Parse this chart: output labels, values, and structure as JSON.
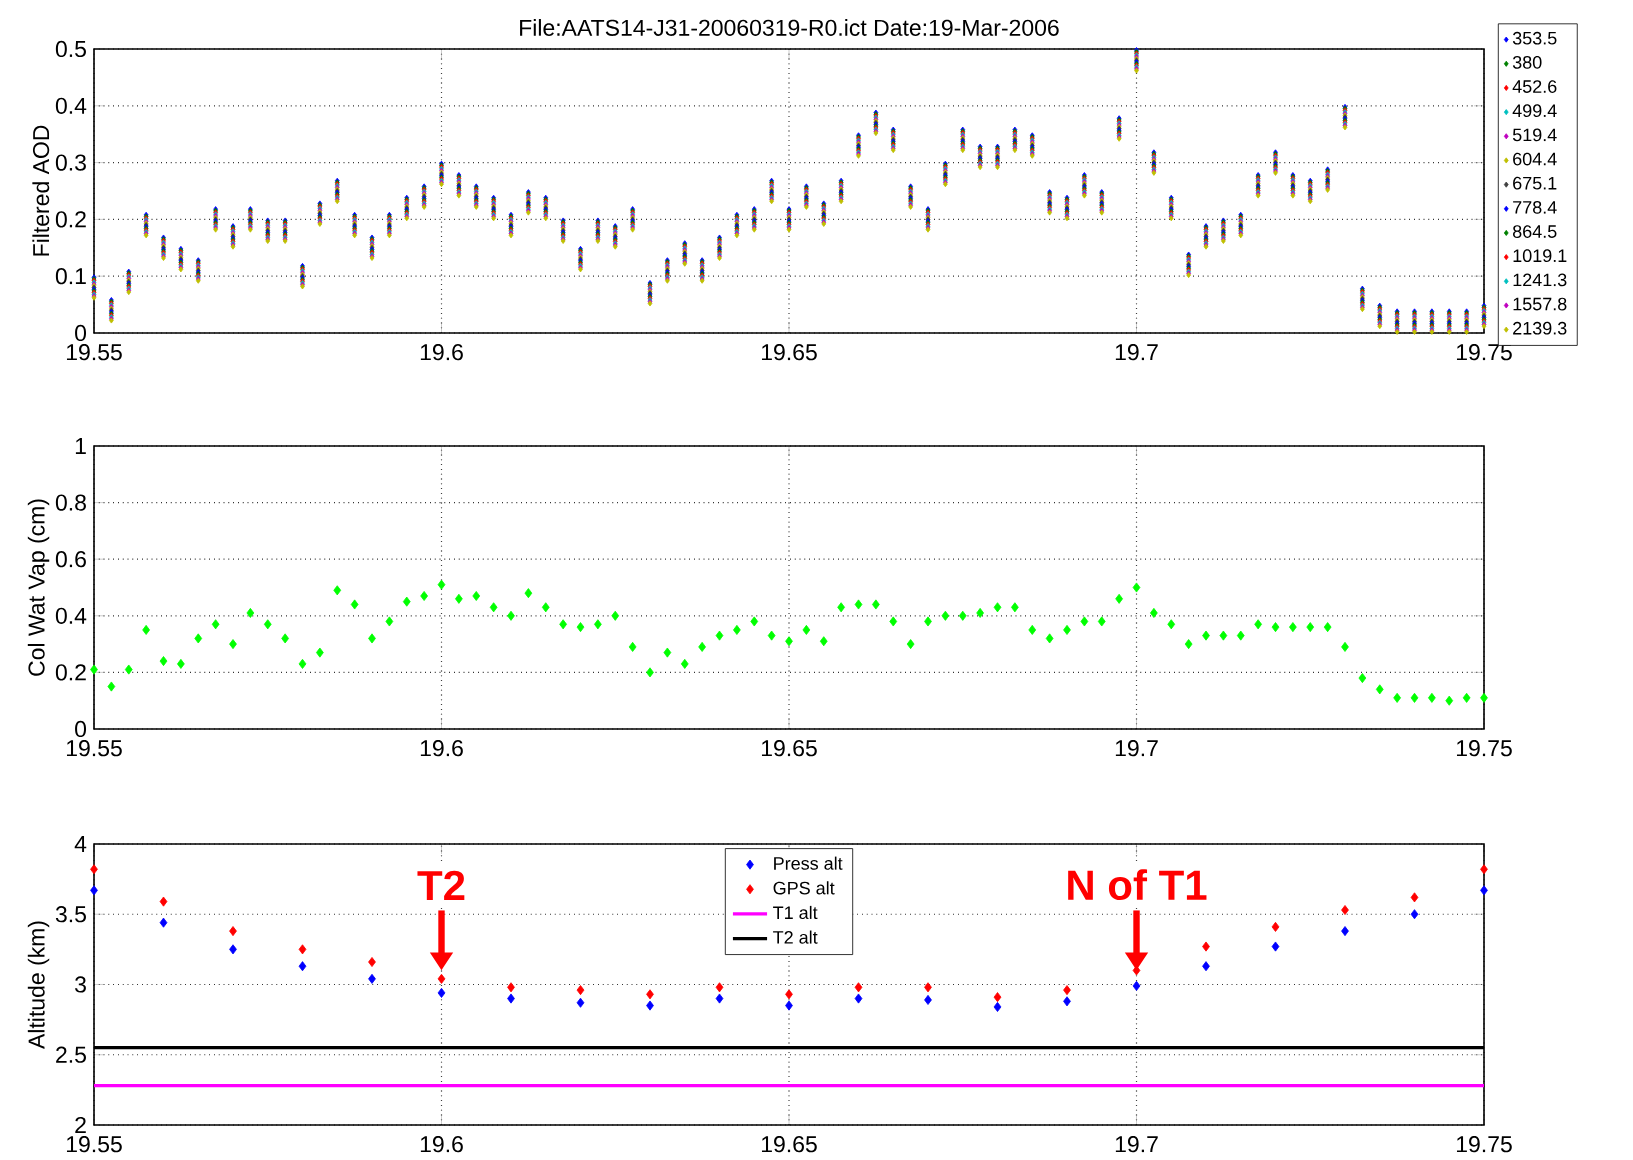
{
  "chart_data": [
    {
      "type": "scatter",
      "title": "File:AATS14-J31-20060319-R0.ict    Date:19-Mar-2006",
      "ylabel": "Filtered AOD",
      "xlim": [
        19.55,
        19.75
      ],
      "ylim": [
        0,
        0.5
      ],
      "xticks": [
        19.55,
        19.6,
        19.65,
        19.7,
        19.75
      ],
      "yticks": [
        0,
        0.1,
        0.2,
        0.3,
        0.4,
        0.5
      ],
      "grid": true,
      "legend": "right",
      "marker": "diamond",
      "x": [
        19.55,
        19.5525,
        19.555,
        19.5575,
        19.56,
        19.5625,
        19.565,
        19.5675,
        19.57,
        19.5725,
        19.575,
        19.5775,
        19.58,
        19.5825,
        19.585,
        19.5875,
        19.59,
        19.5925,
        19.595,
        19.5975,
        19.6,
        19.6025,
        19.605,
        19.6075,
        19.61,
        19.6125,
        19.615,
        19.6175,
        19.62,
        19.6225,
        19.625,
        19.6275,
        19.63,
        19.6325,
        19.635,
        19.6375,
        19.64,
        19.6425,
        19.645,
        19.6475,
        19.65,
        19.6525,
        19.655,
        19.6575,
        19.66,
        19.6625,
        19.665,
        19.6675,
        19.67,
        19.6725,
        19.675,
        19.6775,
        19.68,
        19.6825,
        19.685,
        19.6875,
        19.69,
        19.6925,
        19.695,
        19.6975,
        19.7,
        19.7025,
        19.705,
        19.7075,
        19.71,
        19.7125,
        19.715,
        19.7175,
        19.72,
        19.7225,
        19.725,
        19.7275,
        19.73,
        19.7325,
        19.735,
        19.7375,
        19.74,
        19.7425,
        19.745,
        19.7475,
        19.75
      ],
      "series": [
        {
          "name": "353.5",
          "color": "#0000ff",
          "values": [
            0.098,
            0.058,
            0.108,
            0.208,
            0.168,
            0.148,
            0.128,
            0.218,
            0.188,
            0.218,
            0.198,
            0.198,
            0.118,
            0.228,
            0.268,
            0.208,
            0.168,
            0.208,
            0.238,
            0.258,
            0.298,
            0.278,
            0.258,
            0.238,
            0.208,
            0.248,
            0.238,
            0.198,
            0.148,
            0.198,
            0.188,
            0.218,
            0.088,
            0.128,
            0.158,
            0.128,
            0.168,
            0.208,
            0.218,
            0.268,
            0.218,
            0.258,
            0.228,
            0.268,
            0.348,
            0.388,
            0.358,
            0.258,
            0.218,
            0.298,
            0.358,
            0.328,
            0.328,
            0.358,
            0.348,
            0.248,
            0.238,
            0.278,
            0.248,
            0.378,
            0.498,
            0.318,
            0.238,
            0.138,
            0.188,
            0.198,
            0.208,
            0.278,
            0.318,
            0.278,
            0.268,
            0.288,
            0.398,
            0.078,
            0.048,
            0.038,
            0.038,
            0.038,
            0.038,
            0.038,
            0.048
          ]
        },
        {
          "name": "380",
          "color": "#008000",
          "values": [
            0.095,
            0.055,
            0.105,
            0.205,
            0.165,
            0.145,
            0.125,
            0.215,
            0.185,
            0.215,
            0.195,
            0.195,
            0.115,
            0.225,
            0.265,
            0.205,
            0.165,
            0.205,
            0.235,
            0.255,
            0.295,
            0.275,
            0.255,
            0.235,
            0.205,
            0.245,
            0.235,
            0.195,
            0.145,
            0.195,
            0.185,
            0.215,
            0.085,
            0.125,
            0.155,
            0.125,
            0.165,
            0.205,
            0.215,
            0.265,
            0.215,
            0.255,
            0.225,
            0.265,
            0.345,
            0.385,
            0.355,
            0.255,
            0.215,
            0.295,
            0.355,
            0.325,
            0.325,
            0.355,
            0.345,
            0.245,
            0.235,
            0.275,
            0.245,
            0.375,
            0.495,
            0.315,
            0.235,
            0.135,
            0.185,
            0.195,
            0.205,
            0.275,
            0.315,
            0.275,
            0.265,
            0.285,
            0.395,
            0.075,
            0.045,
            0.035,
            0.035,
            0.035,
            0.035,
            0.035,
            0.045
          ]
        },
        {
          "name": "452.6",
          "color": "#ff0000",
          "values": [
            0.092,
            0.052,
            0.102,
            0.202,
            0.162,
            0.142,
            0.122,
            0.212,
            0.182,
            0.212,
            0.192,
            0.192,
            0.112,
            0.222,
            0.262,
            0.202,
            0.162,
            0.202,
            0.232,
            0.252,
            0.292,
            0.272,
            0.252,
            0.232,
            0.202,
            0.242,
            0.232,
            0.192,
            0.142,
            0.192,
            0.182,
            0.212,
            0.082,
            0.122,
            0.152,
            0.122,
            0.162,
            0.202,
            0.212,
            0.262,
            0.212,
            0.252,
            0.222,
            0.262,
            0.342,
            0.382,
            0.352,
            0.252,
            0.212,
            0.292,
            0.352,
            0.322,
            0.322,
            0.352,
            0.342,
            0.242,
            0.232,
            0.272,
            0.242,
            0.372,
            0.492,
            0.312,
            0.232,
            0.132,
            0.182,
            0.192,
            0.202,
            0.272,
            0.312,
            0.272,
            0.262,
            0.282,
            0.392,
            0.072,
            0.042,
            0.032,
            0.032,
            0.032,
            0.032,
            0.032,
            0.042
          ]
        },
        {
          "name": "499.4",
          "color": "#00bfbf",
          "values": [
            0.089,
            0.049,
            0.099,
            0.199,
            0.159,
            0.139,
            0.119,
            0.209,
            0.179,
            0.209,
            0.189,
            0.189,
            0.109,
            0.219,
            0.259,
            0.199,
            0.159,
            0.199,
            0.229,
            0.249,
            0.289,
            0.269,
            0.249,
            0.229,
            0.199,
            0.239,
            0.229,
            0.189,
            0.139,
            0.189,
            0.179,
            0.209,
            0.079,
            0.119,
            0.149,
            0.119,
            0.159,
            0.199,
            0.209,
            0.259,
            0.209,
            0.249,
            0.219,
            0.259,
            0.339,
            0.379,
            0.349,
            0.249,
            0.209,
            0.289,
            0.349,
            0.319,
            0.319,
            0.349,
            0.339,
            0.239,
            0.229,
            0.269,
            0.239,
            0.369,
            0.489,
            0.309,
            0.229,
            0.129,
            0.179,
            0.189,
            0.199,
            0.269,
            0.309,
            0.269,
            0.259,
            0.279,
            0.389,
            0.069,
            0.039,
            0.029,
            0.029,
            0.029,
            0.029,
            0.029,
            0.039
          ]
        },
        {
          "name": "519.4",
          "color": "#bf00bf",
          "values": [
            0.086,
            0.046,
            0.096,
            0.196,
            0.156,
            0.136,
            0.116,
            0.206,
            0.176,
            0.206,
            0.186,
            0.186,
            0.106,
            0.216,
            0.256,
            0.196,
            0.156,
            0.196,
            0.226,
            0.246,
            0.286,
            0.266,
            0.246,
            0.226,
            0.196,
            0.236,
            0.226,
            0.186,
            0.136,
            0.186,
            0.176,
            0.206,
            0.076,
            0.116,
            0.146,
            0.116,
            0.156,
            0.196,
            0.206,
            0.256,
            0.206,
            0.246,
            0.216,
            0.256,
            0.336,
            0.376,
            0.346,
            0.246,
            0.206,
            0.286,
            0.346,
            0.316,
            0.316,
            0.346,
            0.336,
            0.236,
            0.226,
            0.266,
            0.236,
            0.366,
            0.486,
            0.306,
            0.226,
            0.126,
            0.176,
            0.186,
            0.196,
            0.266,
            0.306,
            0.266,
            0.256,
            0.276,
            0.386,
            0.066,
            0.036,
            0.026,
            0.026,
            0.026,
            0.026,
            0.026,
            0.036
          ]
        },
        {
          "name": "604.4",
          "color": "#bfbf00",
          "values": [
            0.083,
            0.043,
            0.093,
            0.193,
            0.153,
            0.133,
            0.113,
            0.203,
            0.173,
            0.203,
            0.183,
            0.183,
            0.103,
            0.213,
            0.253,
            0.193,
            0.153,
            0.193,
            0.223,
            0.243,
            0.283,
            0.263,
            0.243,
            0.223,
            0.193,
            0.233,
            0.223,
            0.183,
            0.133,
            0.183,
            0.173,
            0.203,
            0.073,
            0.113,
            0.143,
            0.113,
            0.153,
            0.193,
            0.203,
            0.253,
            0.203,
            0.243,
            0.213,
            0.253,
            0.333,
            0.373,
            0.343,
            0.243,
            0.203,
            0.283,
            0.343,
            0.313,
            0.313,
            0.343,
            0.333,
            0.233,
            0.223,
            0.263,
            0.233,
            0.363,
            0.483,
            0.303,
            0.223,
            0.123,
            0.173,
            0.183,
            0.193,
            0.263,
            0.303,
            0.263,
            0.253,
            0.273,
            0.383,
            0.063,
            0.033,
            0.023,
            0.023,
            0.023,
            0.023,
            0.023,
            0.033
          ]
        },
        {
          "name": "675.1",
          "color": "#404040",
          "values": [
            0.08,
            0.04,
            0.09,
            0.19,
            0.15,
            0.13,
            0.11,
            0.2,
            0.17,
            0.2,
            0.18,
            0.18,
            0.1,
            0.21,
            0.25,
            0.19,
            0.15,
            0.19,
            0.22,
            0.24,
            0.28,
            0.26,
            0.24,
            0.22,
            0.19,
            0.23,
            0.22,
            0.18,
            0.13,
            0.18,
            0.17,
            0.2,
            0.07,
            0.11,
            0.14,
            0.11,
            0.15,
            0.19,
            0.2,
            0.25,
            0.2,
            0.24,
            0.21,
            0.25,
            0.33,
            0.37,
            0.34,
            0.24,
            0.2,
            0.28,
            0.34,
            0.31,
            0.31,
            0.34,
            0.33,
            0.23,
            0.22,
            0.26,
            0.23,
            0.36,
            0.48,
            0.3,
            0.22,
            0.12,
            0.17,
            0.18,
            0.19,
            0.26,
            0.3,
            0.26,
            0.25,
            0.27,
            0.38,
            0.06,
            0.03,
            0.02,
            0.02,
            0.02,
            0.02,
            0.02,
            0.03
          ]
        },
        {
          "name": "778.4",
          "color": "#0000ff",
          "values": [
            0.077,
            0.037,
            0.087,
            0.187,
            0.147,
            0.127,
            0.107,
            0.197,
            0.167,
            0.197,
            0.177,
            0.177,
            0.097,
            0.207,
            0.247,
            0.187,
            0.147,
            0.187,
            0.217,
            0.237,
            0.277,
            0.257,
            0.237,
            0.217,
            0.187,
            0.227,
            0.217,
            0.177,
            0.127,
            0.177,
            0.167,
            0.197,
            0.067,
            0.107,
            0.137,
            0.107,
            0.147,
            0.187,
            0.197,
            0.247,
            0.197,
            0.237,
            0.207,
            0.247,
            0.327,
            0.367,
            0.337,
            0.237,
            0.197,
            0.277,
            0.337,
            0.307,
            0.307,
            0.337,
            0.327,
            0.227,
            0.217,
            0.257,
            0.227,
            0.357,
            0.477,
            0.297,
            0.217,
            0.117,
            0.167,
            0.177,
            0.187,
            0.257,
            0.297,
            0.257,
            0.247,
            0.267,
            0.377,
            0.057,
            0.027,
            0.017,
            0.017,
            0.017,
            0.017,
            0.017,
            0.027
          ]
        },
        {
          "name": "864.5",
          "color": "#008000",
          "values": [
            0.074,
            0.034,
            0.084,
            0.184,
            0.144,
            0.124,
            0.104,
            0.194,
            0.164,
            0.194,
            0.174,
            0.174,
            0.094,
            0.204,
            0.244,
            0.184,
            0.144,
            0.184,
            0.214,
            0.234,
            0.274,
            0.254,
            0.234,
            0.214,
            0.184,
            0.224,
            0.214,
            0.174,
            0.124,
            0.174,
            0.164,
            0.194,
            0.064,
            0.104,
            0.134,
            0.104,
            0.144,
            0.184,
            0.194,
            0.244,
            0.194,
            0.234,
            0.204,
            0.244,
            0.324,
            0.364,
            0.334,
            0.234,
            0.194,
            0.274,
            0.334,
            0.304,
            0.304,
            0.334,
            0.324,
            0.224,
            0.214,
            0.254,
            0.224,
            0.354,
            0.474,
            0.294,
            0.214,
            0.114,
            0.164,
            0.174,
            0.184,
            0.254,
            0.294,
            0.254,
            0.244,
            0.264,
            0.374,
            0.054,
            0.024,
            0.014,
            0.014,
            0.014,
            0.014,
            0.014,
            0.024
          ]
        },
        {
          "name": "1019.1",
          "color": "#ff0000",
          "values": [
            0.071,
            0.031,
            0.081,
            0.181,
            0.141,
            0.121,
            0.101,
            0.191,
            0.161,
            0.191,
            0.171,
            0.171,
            0.091,
            0.201,
            0.241,
            0.181,
            0.141,
            0.181,
            0.211,
            0.231,
            0.271,
            0.251,
            0.231,
            0.211,
            0.181,
            0.221,
            0.211,
            0.171,
            0.121,
            0.171,
            0.161,
            0.191,
            0.061,
            0.101,
            0.131,
            0.101,
            0.141,
            0.181,
            0.191,
            0.241,
            0.191,
            0.231,
            0.201,
            0.241,
            0.321,
            0.361,
            0.331,
            0.231,
            0.191,
            0.271,
            0.331,
            0.301,
            0.301,
            0.331,
            0.321,
            0.221,
            0.211,
            0.251,
            0.221,
            0.351,
            0.471,
            0.291,
            0.211,
            0.111,
            0.161,
            0.171,
            0.181,
            0.251,
            0.291,
            0.251,
            0.241,
            0.261,
            0.371,
            0.051,
            0.021,
            0.011,
            0.011,
            0.011,
            0.011,
            0.011,
            0.021
          ]
        },
        {
          "name": "1241.3",
          "color": "#00bfbf",
          "values": [
            0.068,
            0.028,
            0.078,
            0.178,
            0.138,
            0.118,
            0.098,
            0.188,
            0.158,
            0.188,
            0.168,
            0.168,
            0.088,
            0.198,
            0.238,
            0.178,
            0.138,
            0.178,
            0.208,
            0.228,
            0.268,
            0.248,
            0.228,
            0.208,
            0.178,
            0.218,
            0.208,
            0.168,
            0.118,
            0.168,
            0.158,
            0.188,
            0.058,
            0.098,
            0.128,
            0.098,
            0.138,
            0.178,
            0.188,
            0.238,
            0.188,
            0.228,
            0.198,
            0.238,
            0.318,
            0.358,
            0.328,
            0.228,
            0.188,
            0.268,
            0.328,
            0.298,
            0.298,
            0.328,
            0.318,
            0.218,
            0.208,
            0.248,
            0.218,
            0.348,
            0.468,
            0.288,
            0.208,
            0.108,
            0.158,
            0.168,
            0.178,
            0.248,
            0.288,
            0.248,
            0.238,
            0.258,
            0.368,
            0.048,
            0.018,
            0.008,
            0.008,
            0.008,
            0.008,
            0.008,
            0.018
          ]
        },
        {
          "name": "1557.8",
          "color": "#bf00bf",
          "values": [
            0.065,
            0.025,
            0.075,
            0.175,
            0.135,
            0.115,
            0.095,
            0.185,
            0.155,
            0.185,
            0.165,
            0.165,
            0.085,
            0.195,
            0.235,
            0.175,
            0.135,
            0.175,
            0.205,
            0.225,
            0.265,
            0.245,
            0.225,
            0.205,
            0.175,
            0.215,
            0.205,
            0.165,
            0.115,
            0.165,
            0.155,
            0.185,
            0.055,
            0.095,
            0.125,
            0.095,
            0.135,
            0.175,
            0.185,
            0.235,
            0.185,
            0.225,
            0.195,
            0.235,
            0.315,
            0.355,
            0.325,
            0.225,
            0.185,
            0.265,
            0.325,
            0.295,
            0.295,
            0.325,
            0.315,
            0.215,
            0.205,
            0.245,
            0.215,
            0.345,
            0.465,
            0.285,
            0.205,
            0.105,
            0.155,
            0.165,
            0.175,
            0.245,
            0.285,
            0.245,
            0.235,
            0.255,
            0.365,
            0.045,
            0.015,
            0.005,
            0.005,
            0.005,
            0.005,
            0.005,
            0.015
          ]
        },
        {
          "name": "2139.3",
          "color": "#bfbf00",
          "values": [
            0.062,
            0.022,
            0.072,
            0.172,
            0.132,
            0.112,
            0.092,
            0.182,
            0.152,
            0.182,
            0.162,
            0.162,
            0.082,
            0.192,
            0.232,
            0.172,
            0.132,
            0.172,
            0.202,
            0.222,
            0.262,
            0.242,
            0.222,
            0.202,
            0.172,
            0.212,
            0.202,
            0.162,
            0.112,
            0.162,
            0.152,
            0.182,
            0.052,
            0.092,
            0.122,
            0.092,
            0.132,
            0.172,
            0.182,
            0.232,
            0.182,
            0.222,
            0.192,
            0.232,
            0.312,
            0.352,
            0.322,
            0.222,
            0.182,
            0.262,
            0.322,
            0.292,
            0.292,
            0.322,
            0.312,
            0.212,
            0.202,
            0.242,
            0.212,
            0.342,
            0.462,
            0.282,
            0.202,
            0.102,
            0.152,
            0.162,
            0.172,
            0.242,
            0.282,
            0.242,
            0.232,
            0.252,
            0.362,
            0.042,
            0.012,
            0.002,
            0.002,
            0.002,
            0.002,
            0.002,
            0.012
          ]
        }
      ]
    },
    {
      "type": "scatter",
      "ylabel": "Col Wat Vap (cm)",
      "xlim": [
        19.55,
        19.75
      ],
      "ylim": [
        0,
        1
      ],
      "xticks": [
        19.55,
        19.6,
        19.65,
        19.7,
        19.75
      ],
      "yticks": [
        0,
        0.2,
        0.4,
        0.6,
        0.8,
        1
      ],
      "grid": true,
      "marker": "diamond",
      "color": "#00ff00",
      "x": [
        19.55,
        19.5525,
        19.555,
        19.5575,
        19.56,
        19.5625,
        19.565,
        19.5675,
        19.57,
        19.5725,
        19.575,
        19.5775,
        19.58,
        19.5825,
        19.585,
        19.5875,
        19.59,
        19.5925,
        19.595,
        19.5975,
        19.6,
        19.6025,
        19.605,
        19.6075,
        19.61,
        19.6125,
        19.615,
        19.6175,
        19.62,
        19.6225,
        19.625,
        19.6275,
        19.63,
        19.6325,
        19.635,
        19.6375,
        19.64,
        19.6425,
        19.645,
        19.6475,
        19.65,
        19.6525,
        19.655,
        19.6575,
        19.66,
        19.6625,
        19.665,
        19.6675,
        19.67,
        19.6725,
        19.675,
        19.6775,
        19.68,
        19.6825,
        19.685,
        19.6875,
        19.69,
        19.6925,
        19.695,
        19.6975,
        19.7,
        19.7025,
        19.705,
        19.7075,
        19.71,
        19.7125,
        19.715,
        19.7175,
        19.72,
        19.7225,
        19.725,
        19.7275,
        19.73,
        19.7325,
        19.735,
        19.7375,
        19.74,
        19.7425,
        19.745,
        19.7475,
        19.75
      ],
      "values": [
        0.21,
        0.15,
        0.21,
        0.35,
        0.24,
        0.23,
        0.32,
        0.37,
        0.3,
        0.41,
        0.37,
        0.32,
        0.23,
        0.27,
        0.49,
        0.44,
        0.32,
        0.38,
        0.45,
        0.47,
        0.51,
        0.46,
        0.47,
        0.43,
        0.4,
        0.48,
        0.43,
        0.37,
        0.36,
        0.37,
        0.4,
        0.29,
        0.2,
        0.27,
        0.23,
        0.29,
        0.33,
        0.35,
        0.38,
        0.33,
        0.31,
        0.35,
        0.31,
        0.43,
        0.44,
        0.44,
        0.38,
        0.3,
        0.38,
        0.4,
        0.4,
        0.41,
        0.43,
        0.43,
        0.35,
        0.32,
        0.35,
        0.38,
        0.38,
        0.46,
        0.5,
        0.41,
        0.37,
        0.3,
        0.33,
        0.33,
        0.33,
        0.37,
        0.36,
        0.36,
        0.36,
        0.36,
        0.29,
        0.18,
        0.14,
        0.11,
        0.11,
        0.11,
        0.1,
        0.11,
        0.11
      ]
    },
    {
      "type": "scatter",
      "ylabel": "Altitude (km)",
      "xlim": [
        19.55,
        19.75
      ],
      "ylim": [
        2,
        4
      ],
      "xticks": [
        19.55,
        19.6,
        19.65,
        19.7,
        19.75
      ],
      "yticks": [
        2,
        2.5,
        3,
        3.5,
        4
      ],
      "grid": true,
      "legend": "top",
      "marker": "diamond",
      "annotations": [
        {
          "text": "T2",
          "x": 19.6,
          "y": 3.1
        },
        {
          "text": "N of T1",
          "x": 19.7,
          "y": 3.1
        }
      ],
      "series": [
        {
          "name": "Press alt",
          "color": "#0000ff",
          "x": [
            19.55,
            19.56,
            19.57,
            19.58,
            19.59,
            19.6,
            19.61,
            19.62,
            19.63,
            19.64,
            19.65,
            19.66,
            19.67,
            19.68,
            19.69,
            19.7,
            19.71,
            19.72,
            19.73,
            19.74,
            19.75
          ],
          "values": [
            3.67,
            3.44,
            3.25,
            3.13,
            3.04,
            2.94,
            2.9,
            2.87,
            2.85,
            2.9,
            2.85,
            2.9,
            2.89,
            2.84,
            2.88,
            2.99,
            3.13,
            3.27,
            3.38,
            3.5,
            3.67
          ]
        },
        {
          "name": "GPS alt",
          "color": "#ff0000",
          "x": [
            19.55,
            19.56,
            19.57,
            19.58,
            19.59,
            19.6,
            19.61,
            19.62,
            19.63,
            19.64,
            19.65,
            19.66,
            19.67,
            19.68,
            19.69,
            19.7,
            19.71,
            19.72,
            19.73,
            19.74,
            19.75
          ],
          "values": [
            3.82,
            3.59,
            3.38,
            3.25,
            3.16,
            3.04,
            2.98,
            2.96,
            2.93,
            2.98,
            2.93,
            2.98,
            2.98,
            2.91,
            2.96,
            3.1,
            3.27,
            3.41,
            3.53,
            3.62,
            3.82
          ]
        },
        {
          "name": "T1 alt",
          "type": "line",
          "marker": "none",
          "color": "#ff00ff",
          "x": [
            19.55,
            19.75
          ],
          "values": [
            2.28,
            2.28
          ]
        },
        {
          "name": "T2 alt",
          "type": "line",
          "marker": "none",
          "color": "#000000",
          "x": [
            19.55,
            19.75
          ],
          "values": [
            2.55,
            2.55
          ]
        }
      ]
    }
  ]
}
